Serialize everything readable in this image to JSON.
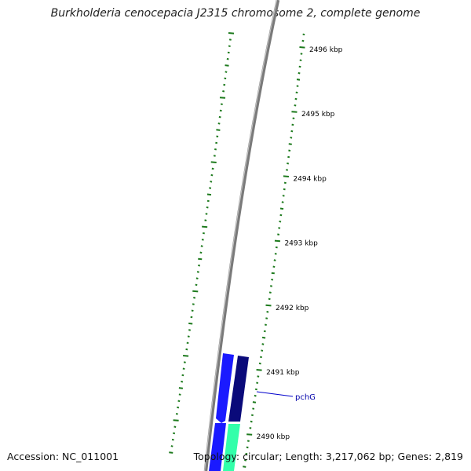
{
  "title": "Burkholderia cenocepacia J2315 chromosome 2, complete genome",
  "footer": {
    "accession": "Accession: NC_011001",
    "topology": "Topology: circular; Length: 3,217,062 bp; Genes: 2,819"
  },
  "colors": {
    "backbone": "#7a7a7a",
    "tick": "#1d7a1d",
    "gene_forward": "#1a1aff",
    "gene_dark": "#0a0a7a",
    "gene_teal": "#33ffaa",
    "label_line": "#0000cc",
    "label_text": "#0000aa"
  },
  "kbp_ticks": [
    {
      "label": "2496 kbp",
      "kbp": 2496
    },
    {
      "label": "2495 kbp",
      "kbp": 2495
    },
    {
      "label": "2494 kbp",
      "kbp": 2494
    },
    {
      "label": "2493 kbp",
      "kbp": 2493
    },
    {
      "label": "2492 kbp",
      "kbp": 2492
    },
    {
      "label": "2491 kbp",
      "kbp": 2491
    },
    {
      "label": "2490 kbp",
      "kbp": 2490
    }
  ],
  "genes": [
    {
      "label": "pchG"
    }
  ]
}
